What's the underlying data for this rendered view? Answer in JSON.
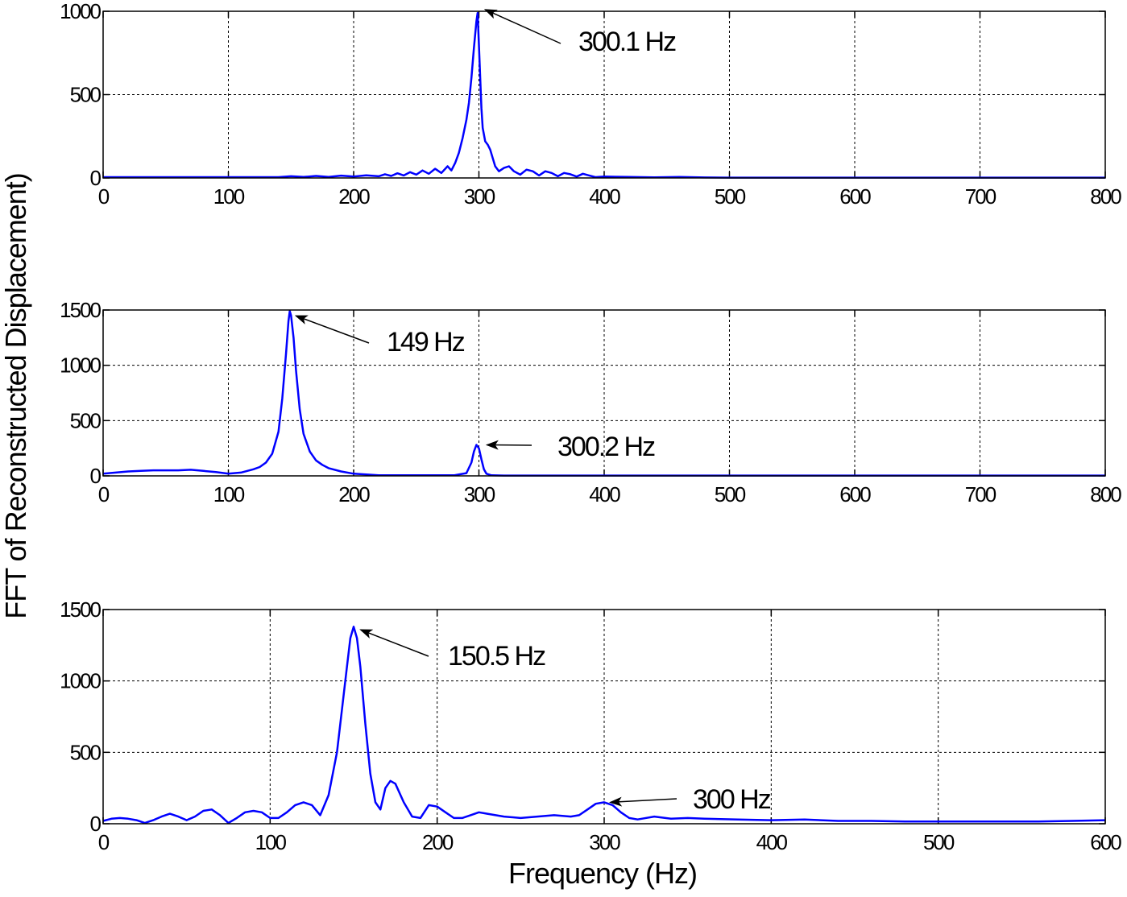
{
  "figure": {
    "ylabel": "FFT of Reconstructed Displacement)",
    "xlabel": "Frequency (Hz)",
    "line_color": "#0000ff"
  },
  "chart_data": [
    {
      "type": "line",
      "xlim": [
        0,
        800
      ],
      "ylim": [
        0,
        1000
      ],
      "xticks": [
        0,
        100,
        200,
        300,
        400,
        500,
        600,
        700,
        800
      ],
      "yticks": [
        0,
        500,
        1000
      ],
      "grid": true,
      "series": [
        {
          "x": [
            0,
            140,
            150,
            160,
            170,
            180,
            190,
            200,
            210,
            220,
            225,
            230,
            235,
            240,
            245,
            250,
            255,
            260,
            265,
            270,
            275,
            278,
            281,
            284,
            287,
            290,
            292,
            294,
            296,
            298,
            299,
            300,
            301,
            302,
            303,
            305,
            307,
            309,
            311,
            313,
            316,
            320,
            324,
            328,
            333,
            338,
            343,
            348,
            353,
            358,
            363,
            368,
            373,
            378,
            383,
            388,
            393,
            400,
            420,
            440,
            460,
            480,
            500,
            800
          ],
          "y": [
            5,
            5,
            10,
            6,
            12,
            6,
            14,
            8,
            16,
            10,
            22,
            12,
            28,
            15,
            35,
            20,
            45,
            25,
            55,
            30,
            70,
            45,
            90,
            150,
            240,
            350,
            450,
            600,
            780,
            940,
            990,
            800,
            600,
            420,
            300,
            220,
            200,
            170,
            120,
            70,
            40,
            60,
            70,
            40,
            20,
            50,
            40,
            15,
            40,
            30,
            10,
            30,
            22,
            8,
            25,
            15,
            5,
            8,
            6,
            4,
            6,
            3,
            2,
            2
          ]
        }
      ],
      "annotations": [
        {
          "text": "300.1 Hz",
          "x": 300.1,
          "y": 990
        }
      ]
    },
    {
      "type": "line",
      "xlim": [
        0,
        800
      ],
      "ylim": [
        0,
        1500
      ],
      "xticks": [
        0,
        100,
        200,
        300,
        400,
        500,
        600,
        700,
        800
      ],
      "yticks": [
        0,
        500,
        1000,
        1500
      ],
      "grid": true,
      "series": [
        {
          "x": [
            0,
            10,
            20,
            30,
            40,
            50,
            60,
            70,
            80,
            90,
            100,
            110,
            120,
            125,
            130,
            135,
            140,
            143,
            146,
            148,
            149,
            150,
            152,
            154,
            157,
            160,
            165,
            170,
            175,
            180,
            190,
            200,
            220,
            280,
            290,
            294,
            296,
            298,
            300,
            302,
            304,
            306,
            310,
            320,
            800
          ],
          "y": [
            20,
            30,
            40,
            45,
            50,
            50,
            50,
            55,
            45,
            35,
            20,
            30,
            60,
            80,
            120,
            200,
            400,
            700,
            1100,
            1400,
            1490,
            1450,
            1250,
            950,
            600,
            380,
            220,
            140,
            100,
            70,
            40,
            20,
            5,
            5,
            25,
            120,
            220,
            280,
            250,
            150,
            60,
            20,
            5,
            3,
            3
          ]
        }
      ],
      "annotations": [
        {
          "text": "149 Hz",
          "x": 149,
          "y": 1490
        },
        {
          "text": "300.2 Hz",
          "x": 300.2,
          "y": 280
        }
      ]
    },
    {
      "type": "line",
      "xlim": [
        0,
        600
      ],
      "ylim": [
        0,
        1500
      ],
      "xticks": [
        0,
        100,
        200,
        300,
        400,
        500,
        600
      ],
      "yticks": [
        0,
        500,
        1000,
        1500
      ],
      "grid": true,
      "series": [
        {
          "x": [
            0,
            5,
            10,
            15,
            20,
            25,
            30,
            35,
            40,
            45,
            50,
            55,
            60,
            65,
            70,
            75,
            80,
            85,
            90,
            95,
            100,
            105,
            110,
            115,
            120,
            125,
            130,
            135,
            140,
            143,
            146,
            148,
            150,
            152,
            154,
            157,
            160,
            163,
            166,
            169,
            172,
            175,
            180,
            185,
            190,
            195,
            200,
            205,
            210,
            215,
            220,
            225,
            230,
            240,
            250,
            260,
            270,
            280,
            285,
            290,
            295,
            300,
            305,
            310,
            315,
            320,
            330,
            340,
            350,
            360,
            380,
            400,
            420,
            440,
            460,
            480,
            500,
            520,
            540,
            560,
            580,
            600
          ],
          "y": [
            20,
            35,
            40,
            35,
            25,
            5,
            25,
            50,
            70,
            50,
            25,
            50,
            90,
            100,
            60,
            5,
            40,
            80,
            90,
            80,
            40,
            40,
            80,
            130,
            150,
            130,
            60,
            200,
            500,
            800,
            1100,
            1300,
            1380,
            1300,
            1100,
            700,
            350,
            150,
            100,
            250,
            300,
            280,
            150,
            50,
            40,
            130,
            120,
            80,
            40,
            40,
            60,
            80,
            70,
            50,
            40,
            50,
            60,
            50,
            60,
            100,
            140,
            150,
            130,
            80,
            40,
            30,
            50,
            35,
            40,
            35,
            30,
            25,
            30,
            20,
            20,
            15,
            15,
            15,
            15,
            15,
            20,
            25
          ]
        }
      ],
      "annotations": [
        {
          "text": "150.5 Hz",
          "x": 150.5,
          "y": 1380
        },
        {
          "text": "300 Hz",
          "x": 300,
          "y": 150
        }
      ]
    }
  ]
}
